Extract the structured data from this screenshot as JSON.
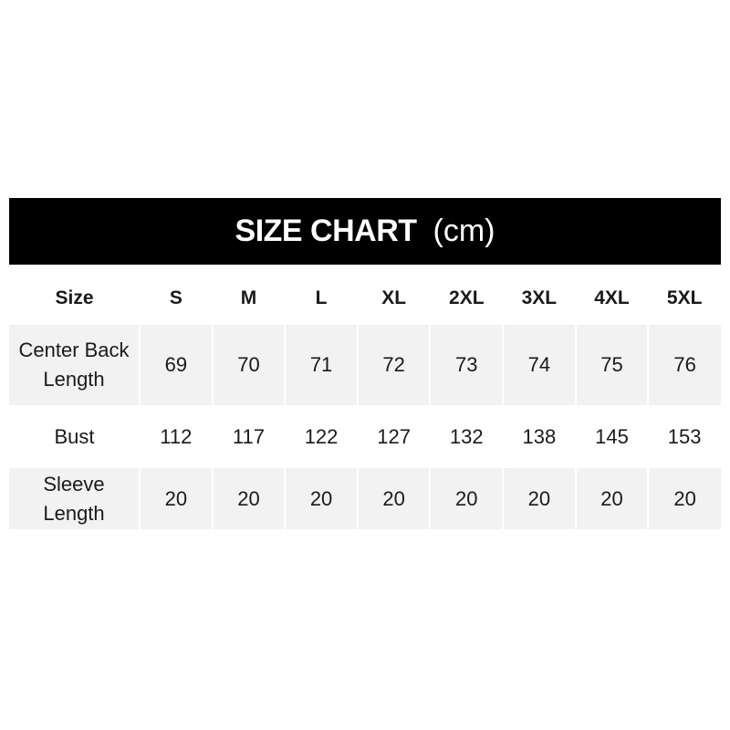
{
  "title": "SIZE CHART",
  "unit": "(cm)",
  "header": [
    "Size",
    "S",
    "M",
    "L",
    "XL",
    "2XL",
    "3XL",
    "4XL",
    "5XL"
  ],
  "rows": [
    {
      "label_line1": "Center Back",
      "label_line2": "Length",
      "values": [
        "69",
        "70",
        "71",
        "72",
        "73",
        "74",
        "75",
        "76"
      ]
    },
    {
      "label_line1": "Bust",
      "label_line2": "",
      "values": [
        "112",
        "117",
        "122",
        "127",
        "132",
        "138",
        "145",
        "153"
      ]
    },
    {
      "label_line1": "Sleeve",
      "label_line2": "Length",
      "values": [
        "20",
        "20",
        "20",
        "20",
        "20",
        "20",
        "20",
        "20"
      ]
    }
  ],
  "colors": {
    "banner": "#000000",
    "shaded_row": "#f2f2f2"
  }
}
